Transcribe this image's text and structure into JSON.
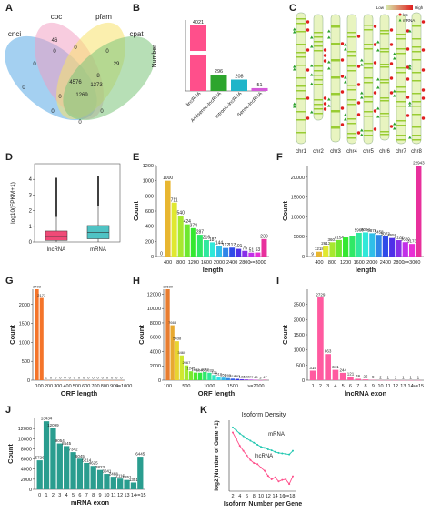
{
  "panels": [
    "A",
    "B",
    "C",
    "D",
    "E",
    "F",
    "G",
    "H",
    "I",
    "J",
    "K"
  ],
  "colors": {
    "teal": "#2a9d8f",
    "orange": "#f4742a",
    "green": "#5cb85c",
    "magenta": "#e040c8",
    "red": "#e8474a",
    "venn_blue": "#5aa9e6",
    "venn_yellow": "#f7e26b",
    "venn_pink": "#f29ac0",
    "venn_green": "#7cc47a"
  },
  "venn": {
    "sets": [
      "cnci",
      "cpc",
      "pfam",
      "cpat"
    ],
    "regions": [
      "46",
      "0",
      "0",
      "0",
      "8",
      "29",
      "0",
      "0",
      "0",
      "4576",
      "1373",
      "1269",
      "0",
      "0",
      "0"
    ]
  },
  "panel_c": {
    "chromosomes": [
      "chr1",
      "chr2",
      "chr3",
      "chr4",
      "chr5",
      "chr6",
      "chr7",
      "chr8"
    ],
    "legend": [
      "Low",
      "High",
      "lnc",
      "mRNA"
    ]
  },
  "chart_data": [
    {
      "panel": "B",
      "type": "bar",
      "categories": [
        "lincRNA",
        "Antisense-lncRNA",
        "Intronic-lncRNA",
        "Sense-lncRNA"
      ],
      "values": [
        4021,
        296,
        208,
        51
      ],
      "ylabel": "Number",
      "colors": [
        "#ff4f8b",
        "#2da52d",
        "#1fb5c9",
        "#d45ad8"
      ]
    },
    {
      "panel": "D",
      "type": "box",
      "categories": [
        "lncRNA",
        "mRNA"
      ],
      "ylabel": "log10(FPKM+1)",
      "ylim": [
        0,
        5
      ],
      "yticks": [
        "0",
        "1",
        "2",
        "3",
        "4"
      ],
      "boxes": [
        {
          "whisker_low": 0,
          "q1": 0.1,
          "median": 0.35,
          "q3": 0.7,
          "whisker_high": 1.6,
          "outlier_top": 4.1,
          "color": "#f04a77"
        },
        {
          "whisker_low": 0,
          "q1": 0.2,
          "median": 0.6,
          "q3": 1.05,
          "whisker_high": 2.3,
          "outlier_top": 4.2,
          "color": "#4fc3c4"
        }
      ]
    },
    {
      "panel": "E",
      "type": "bar",
      "xlabel": "length",
      "ylabel": "Count",
      "ylim": [
        0,
        1200
      ],
      "yticks": [
        "0",
        "200",
        "400",
        "600",
        "800",
        "1000",
        "1200"
      ],
      "xticks": [
        "400",
        "800",
        "1200",
        "1600",
        "2000",
        "2400",
        "2800",
        ">=3000"
      ],
      "values": [
        0,
        1000,
        711,
        540,
        424,
        374,
        287,
        216,
        187,
        144,
        112,
        117,
        101,
        75,
        51,
        53,
        230
      ],
      "labels": [
        "0",
        "1000",
        "711",
        "540",
        "424",
        "374",
        "287",
        "216",
        "187",
        "144",
        "112",
        "117",
        "101",
        "75",
        "51",
        "53",
        "230"
      ]
    },
    {
      "panel": "F",
      "type": "bar",
      "xlabel": "length",
      "ylabel": "Count",
      "ylim": [
        0,
        22943
      ],
      "yticks": [
        "0",
        "5000",
        "10000",
        "15000",
        "20000"
      ],
      "xticks": [
        "400",
        "800",
        "1200",
        "1600",
        "2000",
        "2400",
        "2800",
        ">=3000"
      ],
      "values": [
        9,
        1218,
        2613,
        3601,
        4154,
        4811,
        5212,
        5968,
        6094,
        5876,
        5458,
        5073,
        4659,
        4122,
        3620,
        3173,
        22943
      ],
      "labels": [
        "9",
        "1218",
        "2613",
        "3601",
        "4154",
        "",
        "",
        "5968",
        "6094",
        "5876",
        "5458",
        "5073",
        "4659",
        "4122",
        "3620",
        "3173",
        "22943"
      ]
    },
    {
      "panel": "G",
      "type": "bar",
      "xlabel": "ORF length",
      "ylabel": "Count",
      "ylim": [
        0,
        2403
      ],
      "yticks": [
        "0",
        "500",
        "1000",
        "1500",
        "2000"
      ],
      "xticks": [
        "100",
        "200",
        "300",
        "400",
        "500",
        "600",
        "700",
        "800",
        "900",
        ">=1000"
      ],
      "values": [
        2403,
        2173,
        1,
        0,
        0,
        0,
        0,
        0,
        0,
        0,
        0,
        0,
        0,
        0,
        0,
        0,
        0,
        0,
        0
      ],
      "labels": [
        "2403",
        "2173",
        "1",
        "0",
        "0",
        "0",
        "0",
        "0",
        "0",
        "0",
        "0",
        "0",
        "0",
        "0",
        "0",
        "0",
        "0",
        "0",
        "0"
      ]
    },
    {
      "panel": "H",
      "type": "bar",
      "xlabel": "ORF length",
      "ylabel": "Count",
      "ylim": [
        0,
        12689
      ],
      "yticks": [
        "0",
        "2000",
        "4000",
        "6000",
        "8000",
        "10000",
        "12000"
      ],
      "xticks": [
        "100",
        "500",
        "1000",
        "1500",
        ">=2000"
      ],
      "values": [
        12689,
        7668,
        5438,
        3460,
        2067,
        1245,
        1062,
        1046,
        1142,
        1039,
        726,
        512,
        358,
        295,
        216,
        183,
        132,
        102,
        77,
        48,
        3,
        47
      ],
      "labels": [
        "12689",
        "7668",
        "5438",
        "3460",
        "2067",
        "1245",
        "1062",
        "1046",
        "1142",
        "1039",
        "726",
        "512",
        "358",
        "295",
        "216",
        "183",
        "132",
        "102",
        "77",
        "48",
        "3",
        "47"
      ]
    },
    {
      "panel": "I",
      "type": "bar",
      "xlabel": "lncRNA exon",
      "ylabel": "Count",
      "ylim": [
        0,
        3000
      ],
      "yticks": [
        "0",
        "500",
        "1000",
        "1500",
        "2000",
        "2500"
      ],
      "xticks": [
        "1",
        "2",
        "3",
        "4",
        "5",
        "6",
        "7",
        "8",
        "9",
        "10",
        "11",
        "12",
        "13",
        "14",
        ">=15"
      ],
      "values": [
        315,
        2729,
        863,
        341,
        244,
        121,
        46,
        26,
        9,
        2,
        1,
        1,
        1,
        1,
        1
      ],
      "labels": [
        "315",
        "2729",
        "863",
        "341",
        "244",
        "121",
        "46",
        "26",
        "9",
        "2",
        "1",
        "1",
        "1",
        "1",
        "1"
      ]
    },
    {
      "panel": "J",
      "type": "bar",
      "xlabel": "mRNA exon",
      "ylabel": "Count",
      "ylim": [
        0,
        14000
      ],
      "yticks": [
        "0",
        "2000",
        "4000",
        "6000",
        "8000",
        "10000",
        "12000"
      ],
      "xticks": [
        "0",
        "1",
        "2",
        "3",
        "4",
        "5",
        "6",
        "7",
        "8",
        "9",
        "10",
        "11",
        "12",
        "13",
        "14",
        ">=15"
      ],
      "values": [
        5726,
        13434,
        12099,
        9054,
        8545,
        7342,
        6045,
        5214,
        4625,
        3823,
        3041,
        2488,
        2116,
        1851,
        1351,
        6445
      ],
      "labels": [
        "5726",
        "13434",
        "12099",
        "9054",
        "8545",
        "7342",
        "6045",
        "5214",
        "4625",
        "3823",
        "3041",
        "2488",
        "2116",
        "1851",
        "1351",
        "6445"
      ]
    },
    {
      "panel": "K",
      "type": "line",
      "title": "Isoform Density",
      "xlabel": "Isoform Number per Gene",
      "ylabel": "log2(Number of Gene +1)",
      "xticks": [
        "2",
        "4",
        "6",
        "8",
        "10",
        "12",
        "14",
        "16",
        ">=18"
      ],
      "series": [
        {
          "name": "mRNA",
          "color": "#1fc7b0",
          "values": [
            11.8,
            11.2,
            10.6,
            10.1,
            9.6,
            9.2,
            8.8,
            8.4,
            8.0,
            7.8,
            7.5,
            7.3,
            7.0,
            6.8,
            6.7,
            6.6,
            6.5,
            7.2
          ]
        },
        {
          "name": "lncRNA",
          "color": "#ff4f8b",
          "values": [
            10.8,
            9.5,
            8.2,
            7.2,
            6.3,
            5.4,
            4.8,
            4.6,
            3.9,
            3.3,
            2.3,
            1.6,
            2.0,
            1.2,
            1.5,
            1.6,
            0.7,
            2.2
          ]
        }
      ]
    }
  ]
}
